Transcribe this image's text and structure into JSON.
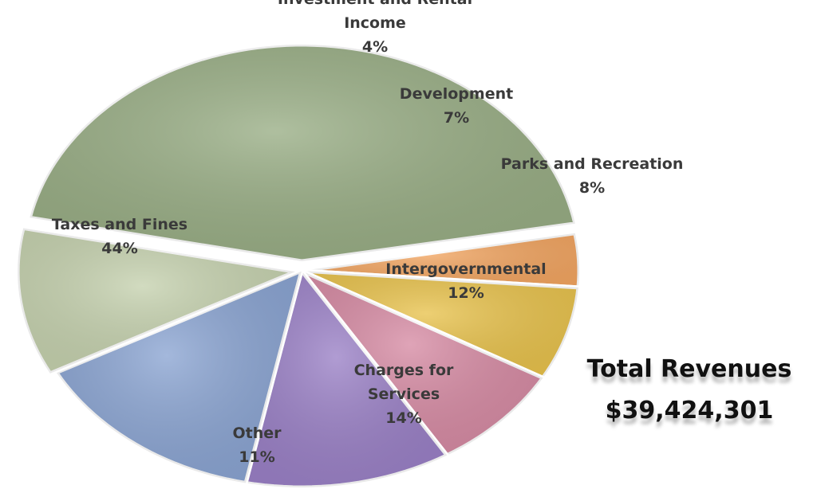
{
  "chart_data": {
    "type": "pie",
    "slices": [
      {
        "label": [
          "Investment and Rental",
          "Income"
        ],
        "pct_label": "4%",
        "value": 4,
        "color": "#f2a561"
      },
      {
        "label": [
          "Development"
        ],
        "pct_label": "7%",
        "value": 7,
        "color": "#e8c24c"
      },
      {
        "label": [
          "Parks and Recreation"
        ],
        "pct_label": "8%",
        "value": 8,
        "color": "#d68aa3"
      },
      {
        "label": [
          "Intergovernmental"
        ],
        "pct_label": "12%",
        "value": 12,
        "color": "#9a80c6"
      },
      {
        "label": [
          "Charges for",
          "Services"
        ],
        "pct_label": "14%",
        "value": 14,
        "color": "#8aa4d2"
      },
      {
        "label": [
          "Other"
        ],
        "pct_label": "11%",
        "value": 11,
        "color": "#c5d1ae"
      },
      {
        "label": [
          "Taxes and Fines"
        ],
        "pct_label": "44%",
        "value": 44,
        "color": "#98ad84"
      }
    ]
  },
  "total": {
    "title": "Total Revenues",
    "value": "$39,424,301"
  }
}
